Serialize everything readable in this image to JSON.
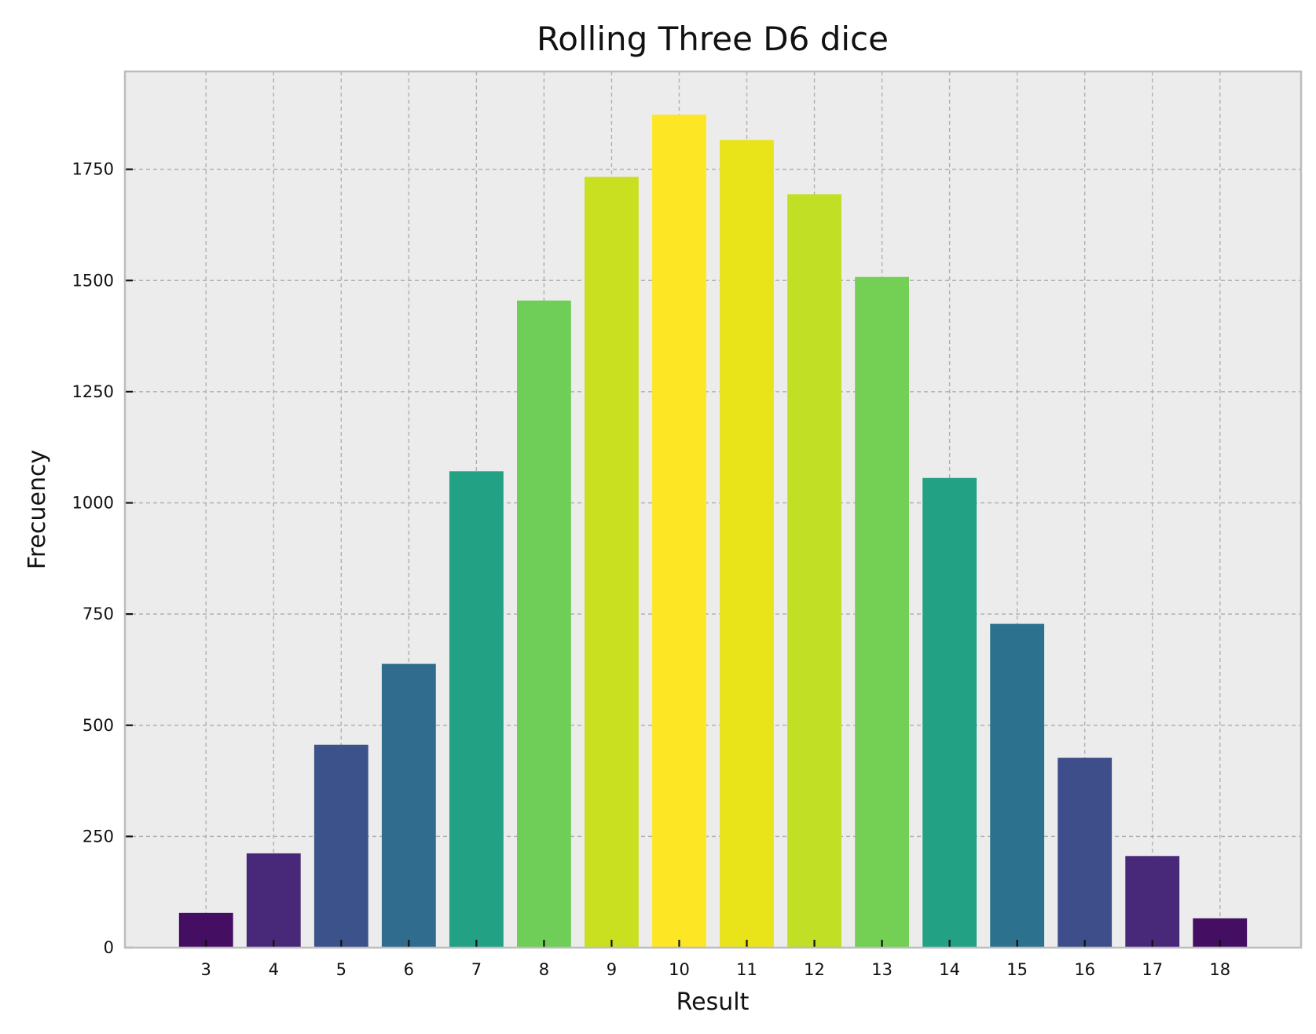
{
  "chart_data": {
    "type": "bar",
    "title": "Rolling Three D6 dice",
    "xlabel": "Result",
    "ylabel": "Frecuency",
    "categories": [
      "3",
      "4",
      "5",
      "6",
      "7",
      "8",
      "9",
      "10",
      "11",
      "12",
      "13",
      "14",
      "15",
      "16",
      "17",
      "18"
    ],
    "values": [
      78,
      212,
      456,
      638,
      1071,
      1455,
      1733,
      1873,
      1816,
      1694,
      1508,
      1056,
      728,
      427,
      206,
      66
    ],
    "bar_colors": [
      "#440f62",
      "#482878",
      "#3c528b",
      "#2f6c8e",
      "#22a184",
      "#6ece58",
      "#c8e020",
      "#fde725",
      "#e9e41a",
      "#c0df25",
      "#74d055",
      "#22a184",
      "#2c728e",
      "#3d4e8a",
      "#482878",
      "#440f62"
    ],
    "ylim": [
      0,
      1970
    ],
    "xlim": [
      1.8,
      19.2
    ],
    "yticks": [
      0,
      250,
      500,
      750,
      1000,
      1250,
      1500,
      1750
    ],
    "ytick_labels": [
      "0",
      "250",
      "500",
      "750",
      "1000",
      "1250",
      "1500",
      "1750"
    ],
    "grid": true,
    "background": "#ececec",
    "frame_color": "#bdbdbd"
  }
}
